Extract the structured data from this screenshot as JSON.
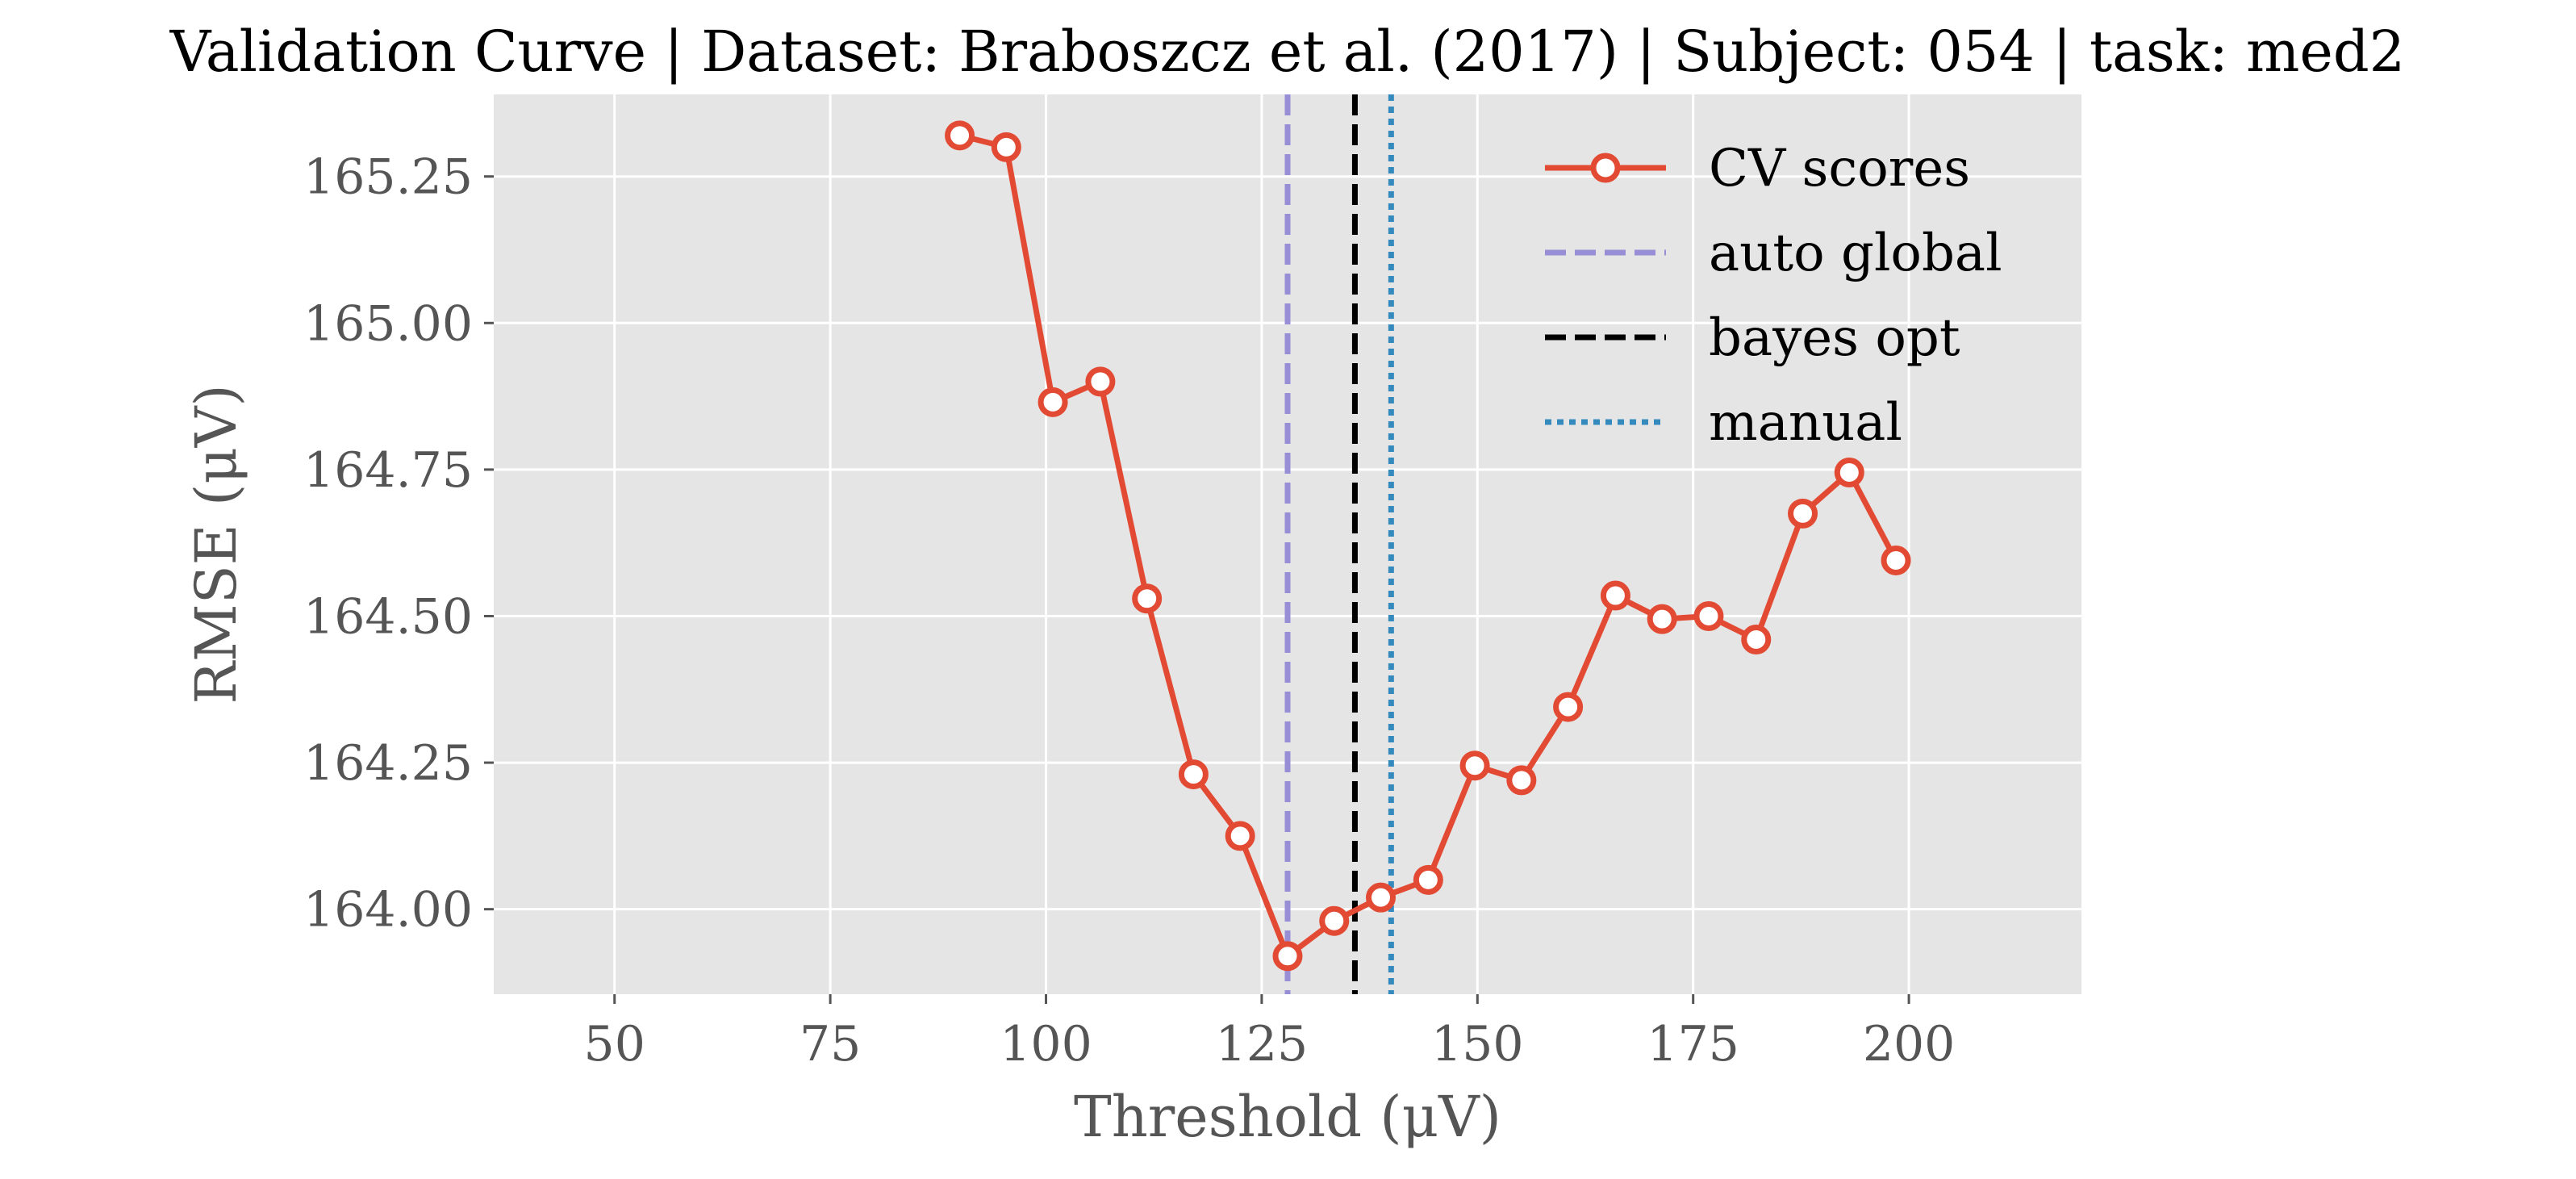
{
  "chart_data": {
    "type": "line",
    "title": "Validation Curve | Dataset: Braboszcz et al. (2017) | Subject: 054 | task: med2",
    "xlabel": "Threshold (μV)",
    "ylabel": "RMSE (μV)",
    "xlim": [
      36,
      220
    ],
    "ylim": [
      163.855,
      165.39
    ],
    "xticks": [
      50,
      75,
      100,
      125,
      150,
      175,
      200
    ],
    "xtick_labels": [
      "50",
      "75",
      "100",
      "125",
      "150",
      "175",
      "200"
    ],
    "yticks": [
      164.0,
      164.25,
      164.5,
      164.75,
      165.0,
      165.25
    ],
    "ytick_labels": [
      "164.00",
      "164.25",
      "164.50",
      "164.75",
      "165.00",
      "165.25"
    ],
    "grid": true,
    "legend_position": "top-right",
    "series": [
      {
        "name": "CV scores",
        "style": "solid-with-circle-markers",
        "color": "#E24A33",
        "x": [
          90.0,
          95.4,
          100.8,
          106.3,
          111.7,
          117.1,
          122.5,
          128.0,
          133.4,
          138.8,
          144.3,
          149.7,
          155.1,
          160.5,
          166.0,
          171.4,
          176.8,
          182.3,
          187.7,
          193.1,
          198.5
        ],
        "y": [
          165.32,
          165.3,
          164.865,
          164.9,
          164.53,
          164.23,
          164.125,
          163.92,
          163.98,
          164.02,
          164.05,
          164.245,
          164.22,
          164.345,
          164.535,
          164.495,
          164.5,
          164.46,
          164.675,
          164.745,
          164.595
        ]
      }
    ],
    "vlines": [
      {
        "name": "auto global",
        "x": 128.0,
        "style": "dashed",
        "color": "#988ED5"
      },
      {
        "name": "bayes opt",
        "x": 135.8,
        "style": "dashed",
        "color": "#000000"
      },
      {
        "name": "manual",
        "x": 140.0,
        "style": "dotted",
        "color": "#348ABD"
      }
    ],
    "colors": {
      "plot_background": "#E5E5E5",
      "grid": "#FFFFFF"
    }
  }
}
